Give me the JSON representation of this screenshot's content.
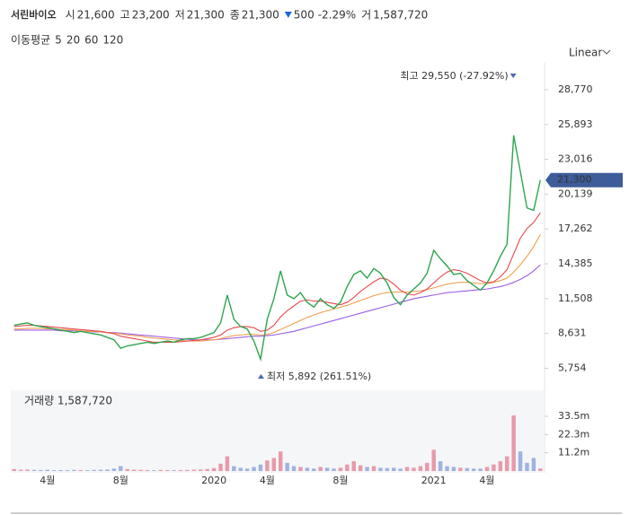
{
  "header": {
    "title": "서린바이오",
    "fields": [
      {
        "label": "시",
        "value": "21,600"
      },
      {
        "label": "고",
        "value": "23,200"
      },
      {
        "label": "저",
        "value": "21,300"
      },
      {
        "label": "종",
        "value": "21,300"
      }
    ],
    "change": "500",
    "change_pct": "-2.29%",
    "volume_label": "거",
    "volume_value": "1,587,720"
  },
  "ma_label": "이동평균",
  "scale_menu": "Linear",
  "chart_data": {
    "type": "line",
    "categories": [
      null,
      null,
      null,
      null,
      null,
      "4월",
      null,
      null,
      null,
      null,
      null,
      null,
      null,
      null,
      null,
      null,
      "8월",
      null,
      null,
      null,
      null,
      null,
      null,
      null,
      null,
      null,
      null,
      null,
      null,
      null,
      "2020",
      null,
      null,
      null,
      null,
      null,
      null,
      null,
      "4월",
      null,
      null,
      null,
      null,
      null,
      null,
      null,
      null,
      null,
      null,
      "8월",
      null,
      null,
      null,
      null,
      null,
      null,
      null,
      null,
      null,
      null,
      null,
      null,
      null,
      "2021",
      null,
      null,
      null,
      null,
      null,
      null,
      null,
      "4월",
      null,
      null,
      null,
      null,
      null,
      null,
      null,
      null
    ],
    "series": [
      {
        "name": "5",
        "color": "#2ea44f",
        "values": [
          9300,
          9400,
          9500,
          9300,
          9200,
          9100,
          9000,
          8900,
          8800,
          8700,
          8800,
          8700,
          8600,
          8500,
          8300,
          8100,
          7400,
          7600,
          7700,
          7800,
          7900,
          7800,
          7900,
          8000,
          7900,
          8100,
          8200,
          8200,
          8300,
          8500,
          8700,
          9500,
          11800,
          9800,
          9200,
          9000,
          8000,
          6500,
          9800,
          11500,
          13800,
          11800,
          11500,
          12000,
          11200,
          10800,
          11500,
          11000,
          10700,
          11200,
          12500,
          13500,
          13800,
          13200,
          14000,
          13600,
          12800,
          11600,
          11000,
          11800,
          12300,
          12800,
          13600,
          15500,
          14800,
          14200,
          13500,
          13600,
          13000,
          12600,
          12200,
          12800,
          13800,
          15000,
          16000,
          25000,
          22000,
          19000,
          18800,
          21300
        ]
      },
      {
        "name": "20",
        "color": "#e5484d",
        "values": [
          9200,
          9250,
          9300,
          9300,
          9250,
          9200,
          9150,
          9100,
          9050,
          9000,
          8950,
          8900,
          8850,
          8800,
          8700,
          8600,
          8400,
          8300,
          8200,
          8100,
          8000,
          7900,
          7900,
          7900,
          7900,
          7950,
          8000,
          8050,
          8100,
          8200,
          8300,
          8500,
          8900,
          9100,
          9200,
          9200,
          9100,
          8800,
          8900,
          9300,
          10000,
          10500,
          10900,
          11300,
          11400,
          11300,
          11300,
          11200,
          11100,
          11000,
          11200,
          11600,
          12100,
          12500,
          12900,
          13200,
          13100,
          12700,
          12200,
          11900,
          11800,
          12000,
          12300,
          12800,
          13300,
          13700,
          13900,
          13800,
          13600,
          13300,
          13000,
          12800,
          12900,
          13300,
          13900,
          15200,
          16500,
          17300,
          17800,
          18600
        ]
      },
      {
        "name": "60",
        "color": "#f0a050",
        "values": [
          9000,
          9000,
          9050,
          9050,
          9050,
          9000,
          9000,
          8950,
          8950,
          8900,
          8850,
          8800,
          8800,
          8750,
          8700,
          8650,
          8600,
          8500,
          8450,
          8400,
          8300,
          8250,
          8200,
          8150,
          8100,
          8050,
          8000,
          8000,
          8000,
          8050,
          8100,
          8200,
          8350,
          8450,
          8500,
          8550,
          8550,
          8500,
          8550,
          8700,
          8950,
          9200,
          9450,
          9700,
          9950,
          10150,
          10350,
          10500,
          10650,
          10800,
          10950,
          11150,
          11350,
          11550,
          11750,
          11900,
          12000,
          12050,
          12050,
          12050,
          12100,
          12150,
          12250,
          12400,
          12550,
          12700,
          12800,
          12850,
          12850,
          12800,
          12750,
          12750,
          12850,
          13000,
          13200,
          13700,
          14300,
          15000,
          15800,
          16800
        ]
      },
      {
        "name": "120",
        "color": "#9b5de5",
        "values": [
          8900,
          8900,
          8900,
          8900,
          8900,
          8900,
          8900,
          8850,
          8850,
          8850,
          8800,
          8800,
          8750,
          8750,
          8700,
          8700,
          8650,
          8600,
          8550,
          8500,
          8450,
          8400,
          8350,
          8300,
          8250,
          8200,
          8150,
          8100,
          8100,
          8100,
          8100,
          8150,
          8200,
          8250,
          8300,
          8350,
          8400,
          8400,
          8450,
          8500,
          8600,
          8700,
          8800,
          8950,
          9100,
          9250,
          9400,
          9550,
          9700,
          9850,
          10000,
          10150,
          10300,
          10450,
          10600,
          10750,
          10900,
          11050,
          11200,
          11350,
          11500,
          11600,
          11700,
          11800,
          11900,
          12000,
          12050,
          12100,
          12150,
          12200,
          12250,
          12300,
          12400,
          12500,
          12650,
          12850,
          13100,
          13400,
          13800,
          14300
        ]
      }
    ],
    "ylim": [
      5042,
      30624
    ],
    "yticks": [
      {
        "value": 5754,
        "label": "5,754"
      },
      {
        "value": 8631,
        "label": "8,631"
      },
      {
        "value": 11508,
        "label": "11,508"
      },
      {
        "value": 14385,
        "label": "14,385"
      },
      {
        "value": 17262,
        "label": "17,262"
      },
      {
        "value": 20139,
        "label": "20,139"
      },
      {
        "value": 23016,
        "label": "23,016"
      },
      {
        "value": 25893,
        "label": "25,893"
      },
      {
        "value": 28770,
        "label": "28,770"
      }
    ],
    "current": {
      "value": 21300,
      "label": "21,300"
    },
    "high_annotation": "최고 29,550 (-27.92%)",
    "low_annotation": "최저 5,892 (261.51%)",
    "volume": {
      "label": "거래량 1,587,720",
      "color_up": "#e89aaa",
      "color_down": "#9fb2e0",
      "values": [
        1.2,
        0.8,
        0.9,
        0.7,
        0.6,
        0.8,
        0.5,
        0.6,
        0.5,
        0.7,
        0.6,
        0.5,
        0.7,
        0.8,
        0.9,
        1.5,
        3.0,
        1.2,
        0.8,
        0.7,
        0.6,
        0.5,
        0.7,
        0.6,
        0.5,
        0.6,
        0.7,
        0.8,
        0.9,
        1.2,
        1.8,
        4.5,
        9.0,
        3.0,
        2.0,
        1.5,
        2.5,
        4.0,
        6.5,
        8.0,
        12.0,
        5.0,
        3.0,
        2.5,
        2.0,
        1.5,
        2.5,
        2.0,
        1.5,
        2.0,
        4.0,
        6.0,
        3.5,
        2.5,
        3.0,
        2.0,
        1.8,
        2.0,
        1.5,
        2.5,
        2.0,
        3.0,
        5.0,
        13.0,
        6.0,
        3.0,
        2.5,
        2.0,
        1.8,
        1.5,
        1.5,
        2.5,
        4.0,
        6.0,
        9.0,
        34.0,
        12.0,
        5.0,
        8.0,
        1.59
      ],
      "ylim": [
        0,
        49.4
      ],
      "yticks": [
        {
          "value": 11.2,
          "label": "11.2m"
        },
        {
          "value": 22.3,
          "label": "22.3m"
        },
        {
          "value": 33.5,
          "label": "33.5m"
        }
      ]
    }
  }
}
